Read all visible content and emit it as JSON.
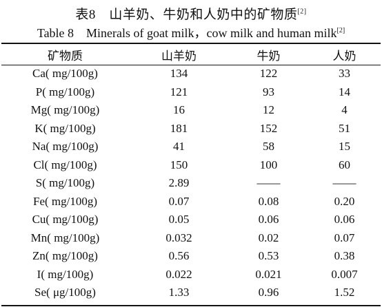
{
  "document": {
    "title_cn": "表8　山羊奶、牛奶和人奶中的矿物质",
    "title_cn_ref": "[2]",
    "title_en": "Table 8　Minerals of goat milk，cow milk and human milk",
    "title_en_ref": "[2]"
  },
  "table": {
    "headers": [
      "矿物质",
      "山羊奶",
      "牛奶",
      "人奶"
    ],
    "rows": [
      [
        "Ca( mg/100g)",
        "134",
        "122",
        "33"
      ],
      [
        "P( mg/100g)",
        "121",
        "93",
        "14"
      ],
      [
        "Mg( mg/100g)",
        "16",
        "12",
        "4"
      ],
      [
        "K( mg/100g)",
        "181",
        "152",
        "51"
      ],
      [
        "Na( mg/100g)",
        "41",
        "58",
        "15"
      ],
      [
        "Cl( mg/100g)",
        "150",
        "100",
        "60"
      ],
      [
        "S( mg/100g)",
        "2.89",
        "——",
        "——"
      ],
      [
        "Fe( mg/100g)",
        "0.07",
        "0.08",
        "0.20"
      ],
      [
        "Cu( mg/100g)",
        "0.05",
        "0.06",
        "0.06"
      ],
      [
        "Mn( mg/100g)",
        "0.032",
        "0.02",
        "0.07"
      ],
      [
        "Zn( mg/100g)",
        "0.56",
        "0.53",
        "0.38"
      ],
      [
        "I( mg/100g)",
        "0.022",
        "0.021",
        "0.007"
      ],
      [
        "Se( μg/100g)",
        "1.33",
        "0.96",
        "1.52"
      ]
    ]
  }
}
